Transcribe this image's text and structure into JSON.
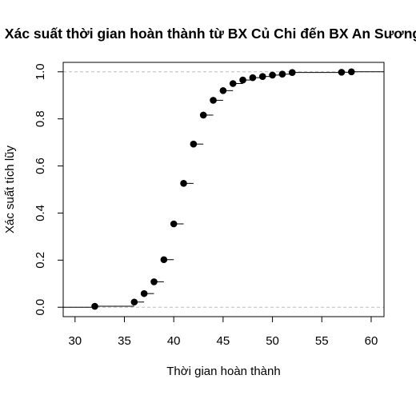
{
  "chart_data": {
    "type": "scatter",
    "subtype": "ecdf-step",
    "title": "Xác suất thời gian hoàn thành từ BX Củ Chi đến BX An Sương",
    "xlabel": "Thời gian hoàn thành",
    "ylabel": "Xác suất tích lũy",
    "xlim": [
      28.8,
      61.3
    ],
    "ylim": [
      -0.04,
      1.04
    ],
    "xticks": [
      "30",
      "35",
      "40",
      "45",
      "50",
      "55",
      "60"
    ],
    "yticks": [
      "0.0",
      "0.2",
      "0.4",
      "0.6",
      "0.8",
      "1.0"
    ],
    "reference_lines_y": [
      0,
      1
    ],
    "grid": false,
    "points": {
      "x": [
        32,
        36,
        37,
        38,
        39,
        40,
        41,
        42,
        43,
        44,
        45,
        46,
        47,
        48,
        49,
        50,
        51,
        52,
        57,
        58
      ],
      "y": [
        0.004,
        0.022,
        0.058,
        0.108,
        0.202,
        0.354,
        0.526,
        0.693,
        0.816,
        0.879,
        0.92,
        0.95,
        0.965,
        0.975,
        0.98,
        0.986,
        0.99,
        0.997,
        0.998,
        1.0
      ]
    },
    "colors": {
      "points": "#000000",
      "reference": "#bebebe"
    }
  }
}
